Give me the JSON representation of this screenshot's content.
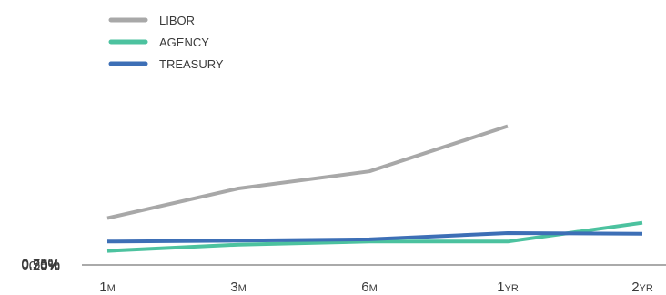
{
  "chart_data": {
    "type": "line",
    "categories": [
      {
        "main": "1",
        "suffix": "M"
      },
      {
        "main": "3",
        "suffix": "M"
      },
      {
        "main": "6",
        "suffix": "M"
      },
      {
        "main": "1",
        "suffix": "YR"
      },
      {
        "main": "2",
        "suffix": "YR"
      }
    ],
    "yticks": [
      "0.0%",
      "0.25%",
      "0.50%",
      "0.75%"
    ],
    "ylim": [
      0,
      0.75
    ],
    "grid": false,
    "legend_position": "top-left",
    "series": [
      {
        "name": "LIBOR",
        "color": "#a8a8a8",
        "values": [
          0.15,
          0.245,
          0.3,
          0.445,
          null
        ]
      },
      {
        "name": "AGENCY",
        "color": "#4cc29f",
        "values": [
          0.045,
          0.065,
          0.075,
          0.075,
          0.135
        ]
      },
      {
        "name": "TREASURY",
        "color": "#3d6fb6",
        "values": [
          0.075,
          0.078,
          0.082,
          0.102,
          0.1
        ]
      }
    ]
  }
}
